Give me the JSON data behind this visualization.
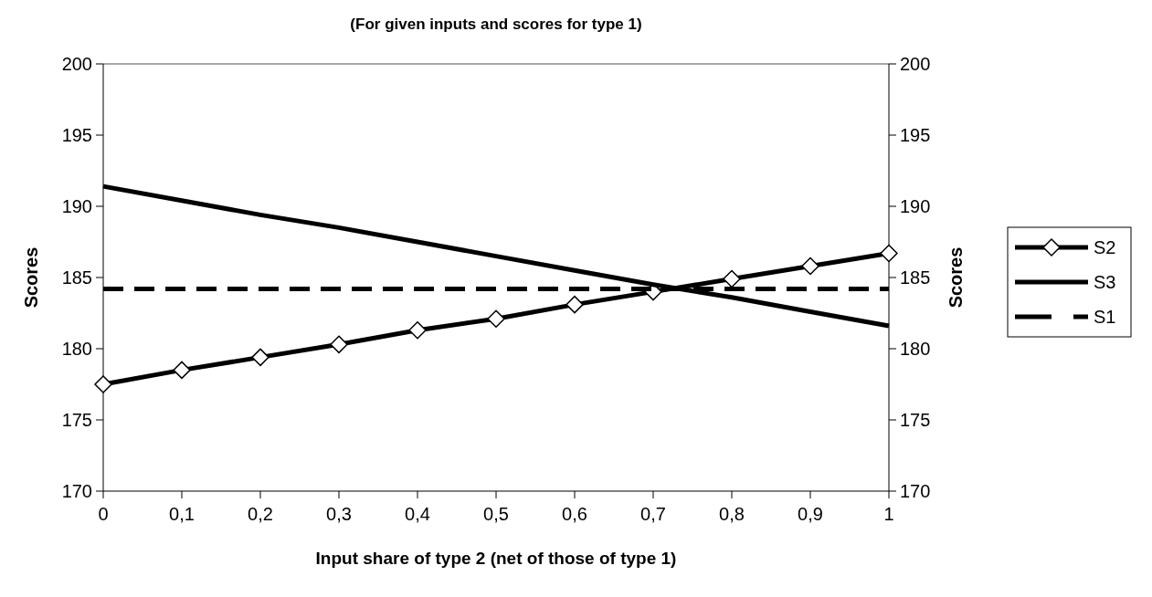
{
  "chart_data": {
    "type": "line",
    "title": "(For given inputs and scores for type 1)",
    "xlabel": "Input share of type 2 (net of those of type 1)",
    "ylabel": "Scores",
    "y2label": "Scores",
    "xlim": [
      0,
      1
    ],
    "xticks": [
      0,
      {
        "value": 0.1,
        "label": "0,1"
      },
      {
        "value": 0.2,
        "label": "0,2"
      },
      {
        "value": 0.3,
        "label": "0,3"
      },
      {
        "value": 0.4,
        "label": "0,4"
      },
      {
        "value": 0.5,
        "label": "0,5"
      },
      {
        "value": 0.6,
        "label": "0,6"
      },
      {
        "value": 0.7,
        "label": "0,7"
      },
      {
        "value": 0.8,
        "label": "0,8"
      },
      {
        "value": 0.9,
        "label": "0,9"
      },
      1
    ],
    "ylim": [
      170,
      200
    ],
    "yticks": [
      170,
      175,
      180,
      185,
      190,
      195,
      200
    ],
    "y2lim": [
      170,
      200
    ],
    "y2ticks": [
      170,
      175,
      180,
      185,
      190,
      195,
      200
    ],
    "x": [
      0,
      0.1,
      0.2,
      0.3,
      0.4,
      0.5,
      0.6,
      0.7,
      0.8,
      0.9,
      1
    ],
    "series": [
      {
        "name": "S2",
        "color": "#000000",
        "marker": "diamond",
        "line_style": "solid",
        "values": [
          177.5,
          178.5,
          179.4,
          180.3,
          181.3,
          182.1,
          183.1,
          184.0,
          184.9,
          185.8,
          186.7
        ]
      },
      {
        "name": "S3",
        "color": "#000000",
        "marker": "none",
        "line_style": "solid",
        "values": [
          191.4,
          190.4,
          189.4,
          188.5,
          187.5,
          186.5,
          185.5,
          184.5,
          183.6,
          182.6,
          181.6
        ]
      },
      {
        "name": "S1",
        "color": "#000000",
        "marker": "none",
        "line_style": "dashed",
        "values": [
          184.2,
          184.2,
          184.2,
          184.2,
          184.2,
          184.2,
          184.2,
          184.2,
          184.2,
          184.2,
          184.2
        ]
      }
    ],
    "legend": "right",
    "grid": false
  }
}
